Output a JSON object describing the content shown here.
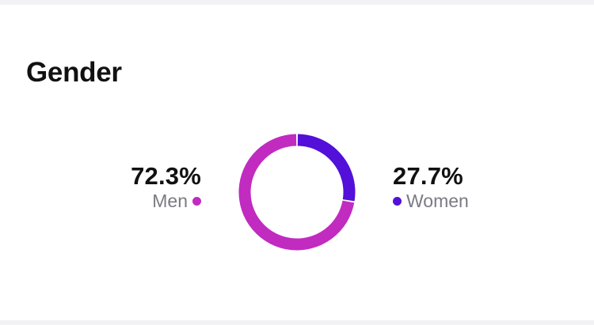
{
  "card": {
    "title": "Gender"
  },
  "chart_data": {
    "type": "pie",
    "variant": "donut",
    "title": "Gender",
    "slices": [
      {
        "label": "Men",
        "value": 72.3,
        "display": "72.3%",
        "color": "#c12bc0"
      },
      {
        "label": "Women",
        "value": 27.7,
        "display": "27.7%",
        "color": "#5210d8"
      }
    ],
    "legend_placement": "sides"
  }
}
